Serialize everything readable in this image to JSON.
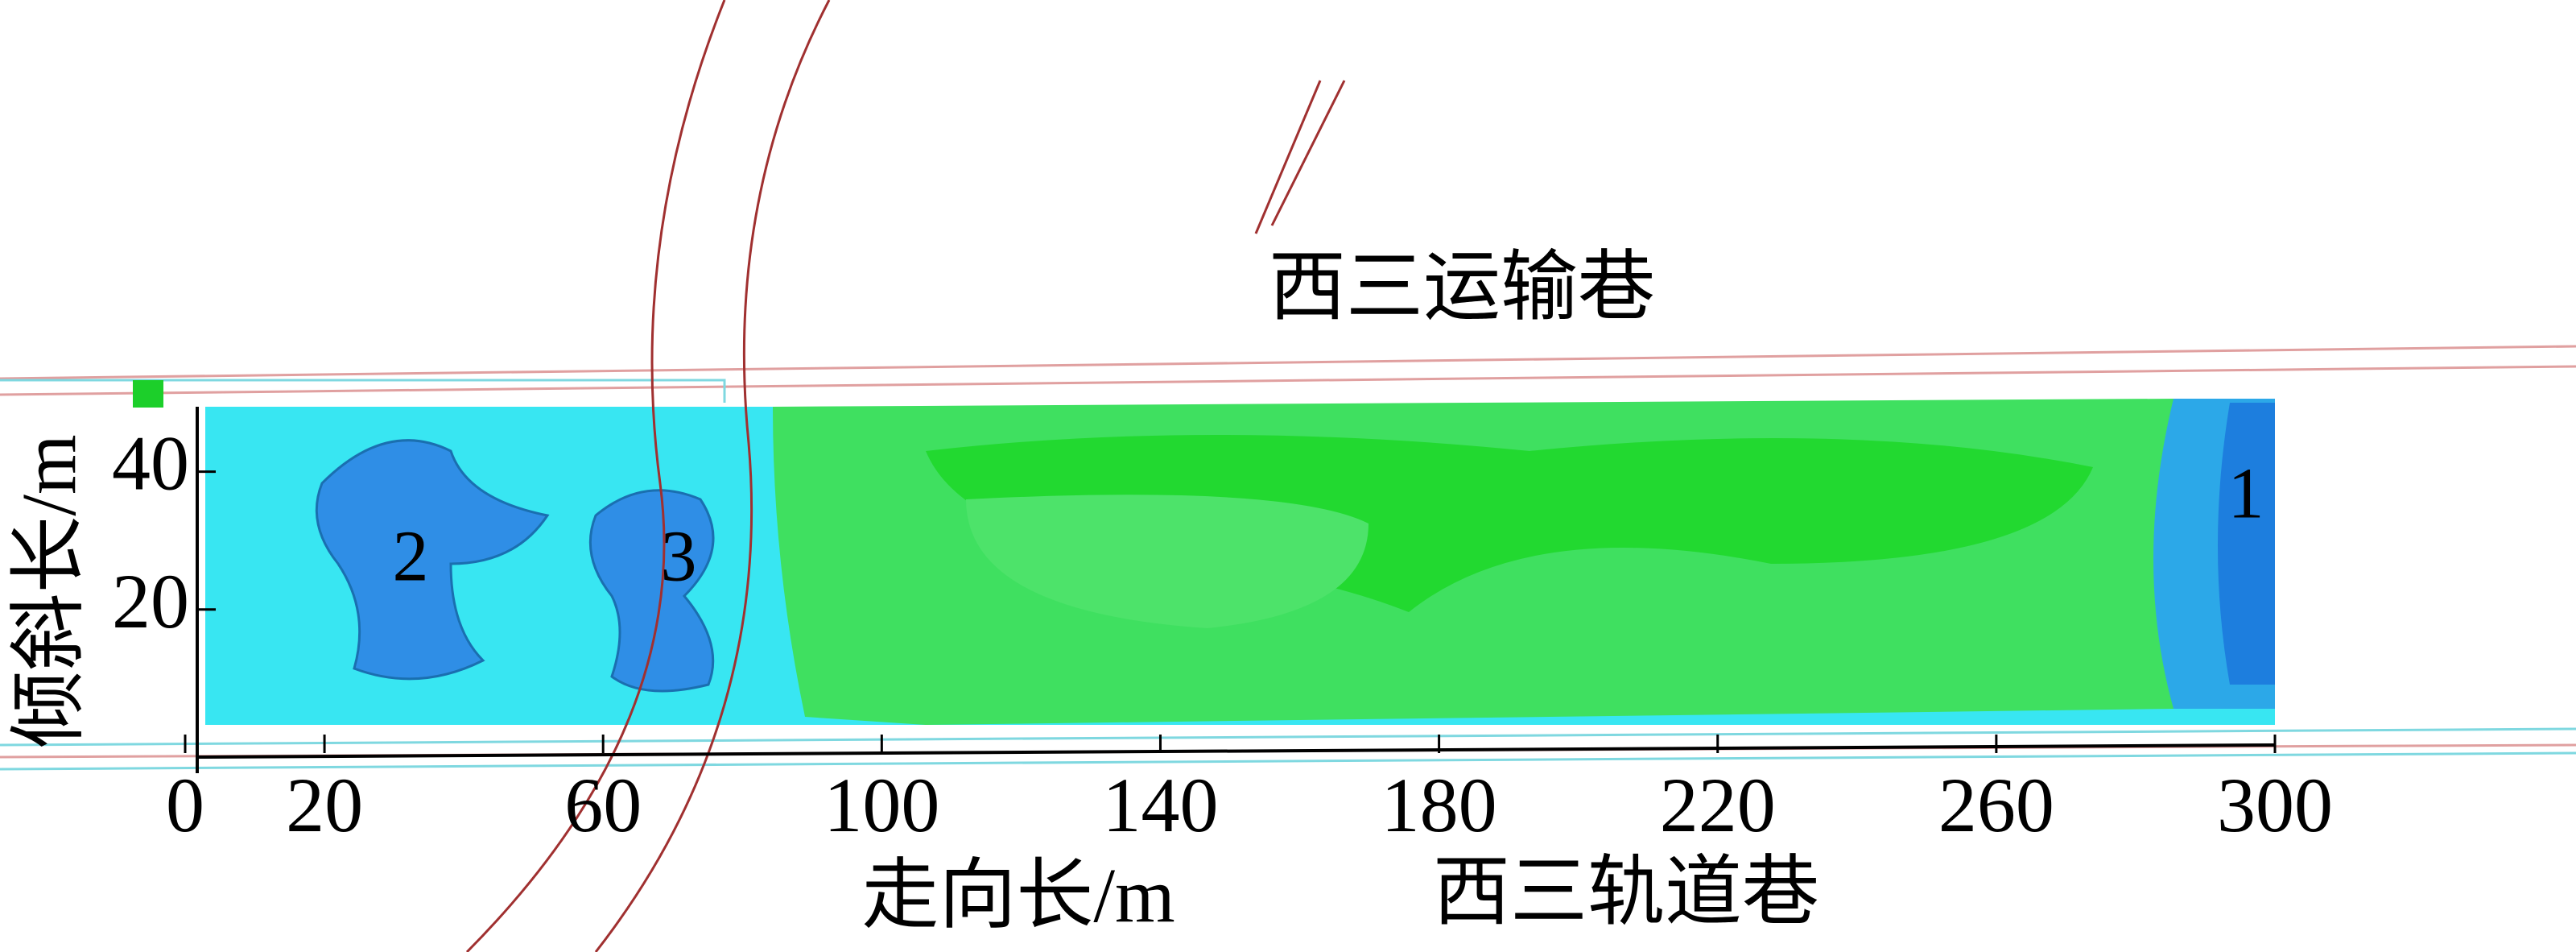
{
  "chart_data": {
    "type": "contour",
    "xlabel": "走向长/m",
    "ylabel": "倾斜长/m",
    "xlim": [
      0,
      300
    ],
    "ylim": [
      0,
      50
    ],
    "xticks": [
      0,
      20,
      60,
      100,
      140,
      180,
      220,
      260,
      300
    ],
    "yticks": [
      20,
      40
    ],
    "annotations": [
      {
        "text": "西三运输巷"
      },
      {
        "text": "西三轨道巷"
      }
    ],
    "region_labels": [
      "1",
      "2",
      "3"
    ]
  }
}
